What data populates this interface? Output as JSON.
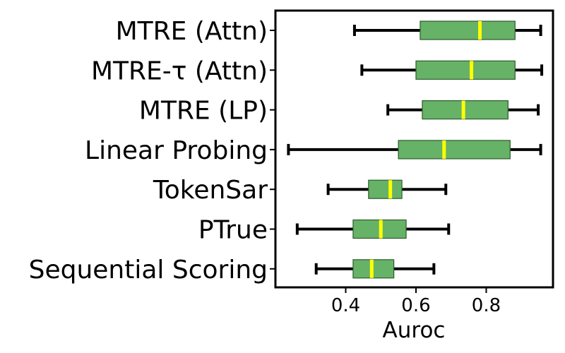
{
  "chart_data": {
    "type": "boxplot",
    "orientation": "horizontal",
    "xlabel": "Auroc",
    "ylabel": "",
    "xlim": [
      0.2,
      0.99
    ],
    "xticks": [
      0.4,
      0.6,
      0.8
    ],
    "xtick_labels": [
      "0.4",
      "0.6",
      "0.8"
    ],
    "grid": false,
    "colors": {
      "box_fill": "#66b266",
      "box_edge": "#2f5a2f",
      "median": "#ffff00",
      "whisker": "#000000"
    },
    "categories": [
      "MTRE (Attn)",
      "MTRE-τ (Attn)",
      "MTRE (LP)",
      "Linear Probing",
      "TokenSar",
      "PTrue",
      "Sequential Scoring"
    ],
    "boxes": [
      {
        "label": "MTRE (Attn)",
        "min": 0.425,
        "q1": 0.612,
        "median": 0.782,
        "q3": 0.882,
        "max": 0.955
      },
      {
        "label": "MTRE-τ (Attn)",
        "min": 0.446,
        "q1": 0.6,
        "median": 0.758,
        "q3": 0.882,
        "max": 0.958
      },
      {
        "label": "MTRE (LP)",
        "min": 0.52,
        "q1": 0.618,
        "median": 0.735,
        "q3": 0.862,
        "max": 0.948
      },
      {
        "label": "Linear Probing",
        "min": 0.237,
        "q1": 0.55,
        "median": 0.68,
        "q3": 0.868,
        "max": 0.955
      },
      {
        "label": "TokenSar",
        "min": 0.35,
        "q1": 0.465,
        "median": 0.527,
        "q3": 0.56,
        "max": 0.685
      },
      {
        "label": "PTrue",
        "min": 0.262,
        "q1": 0.421,
        "median": 0.5,
        "q3": 0.572,
        "max": 0.693
      },
      {
        "label": "Sequential Scoring",
        "min": 0.316,
        "q1": 0.421,
        "median": 0.474,
        "q3": 0.537,
        "max": 0.651
      }
    ]
  }
}
